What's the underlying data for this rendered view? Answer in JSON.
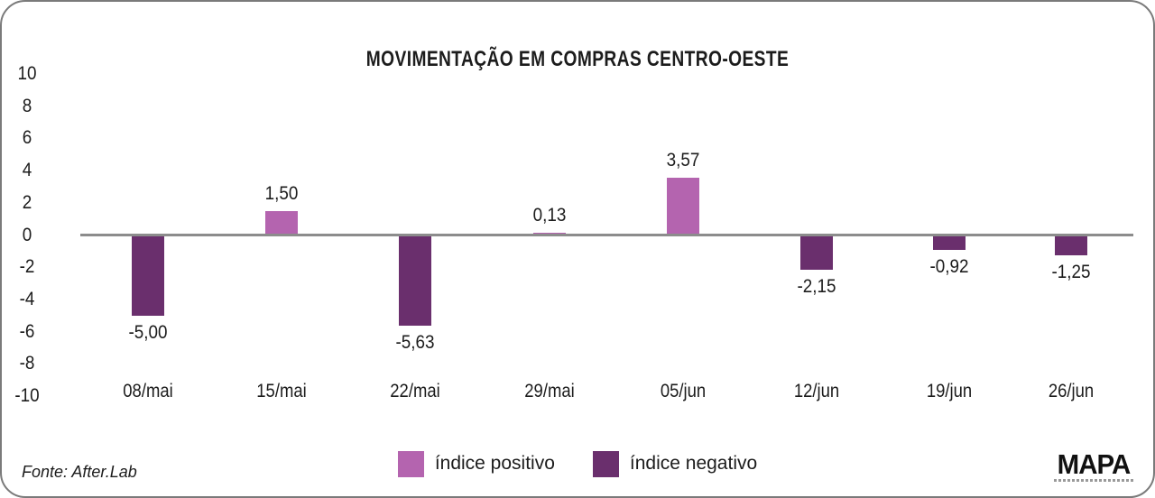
{
  "chart_data": {
    "type": "bar",
    "title": "MOVIMENTAÇÃO EM COMPRAS CENTRO-OESTE",
    "categories": [
      "08/mai",
      "15/mai",
      "22/mai",
      "29/mai",
      "05/jun",
      "12/jun",
      "19/jun",
      "26/jun"
    ],
    "values": [
      -5.0,
      1.5,
      -5.63,
      0.13,
      3.57,
      -2.15,
      -0.92,
      -1.25
    ],
    "value_labels": [
      "-5,00",
      "1,50",
      "-5,63",
      "0,13",
      "3,57",
      "-2,15",
      "-0,92",
      "-1,25"
    ],
    "xlabel": "",
    "ylabel": "",
    "ylim": [
      -10,
      10
    ],
    "ytick_labels": [
      "10",
      "8",
      "6",
      "4",
      "2",
      "0",
      "-2",
      "-4",
      "-6",
      "-8",
      "-10"
    ],
    "ytick_values": [
      10,
      8,
      6,
      4,
      2,
      0,
      -2,
      -4,
      -6,
      -8,
      -10
    ],
    "grid": false,
    "legend_position": "bottom",
    "series_colors": {
      "positive": "#b464af",
      "negative": "#6a2f6d"
    }
  },
  "legend": {
    "items": [
      {
        "name": "positive",
        "label": "índice positivo",
        "color": "#b464af"
      },
      {
        "name": "negative",
        "label": "índice negativo",
        "color": "#6a2f6d"
      }
    ]
  },
  "footer": {
    "source": "Fonte: After.Lab",
    "logo": "MAPA"
  },
  "colors": {
    "axis_line": "#8c8c8c",
    "card_border": "#7a7a7a",
    "text": "#1c1c1c",
    "background": "#ffffff"
  }
}
